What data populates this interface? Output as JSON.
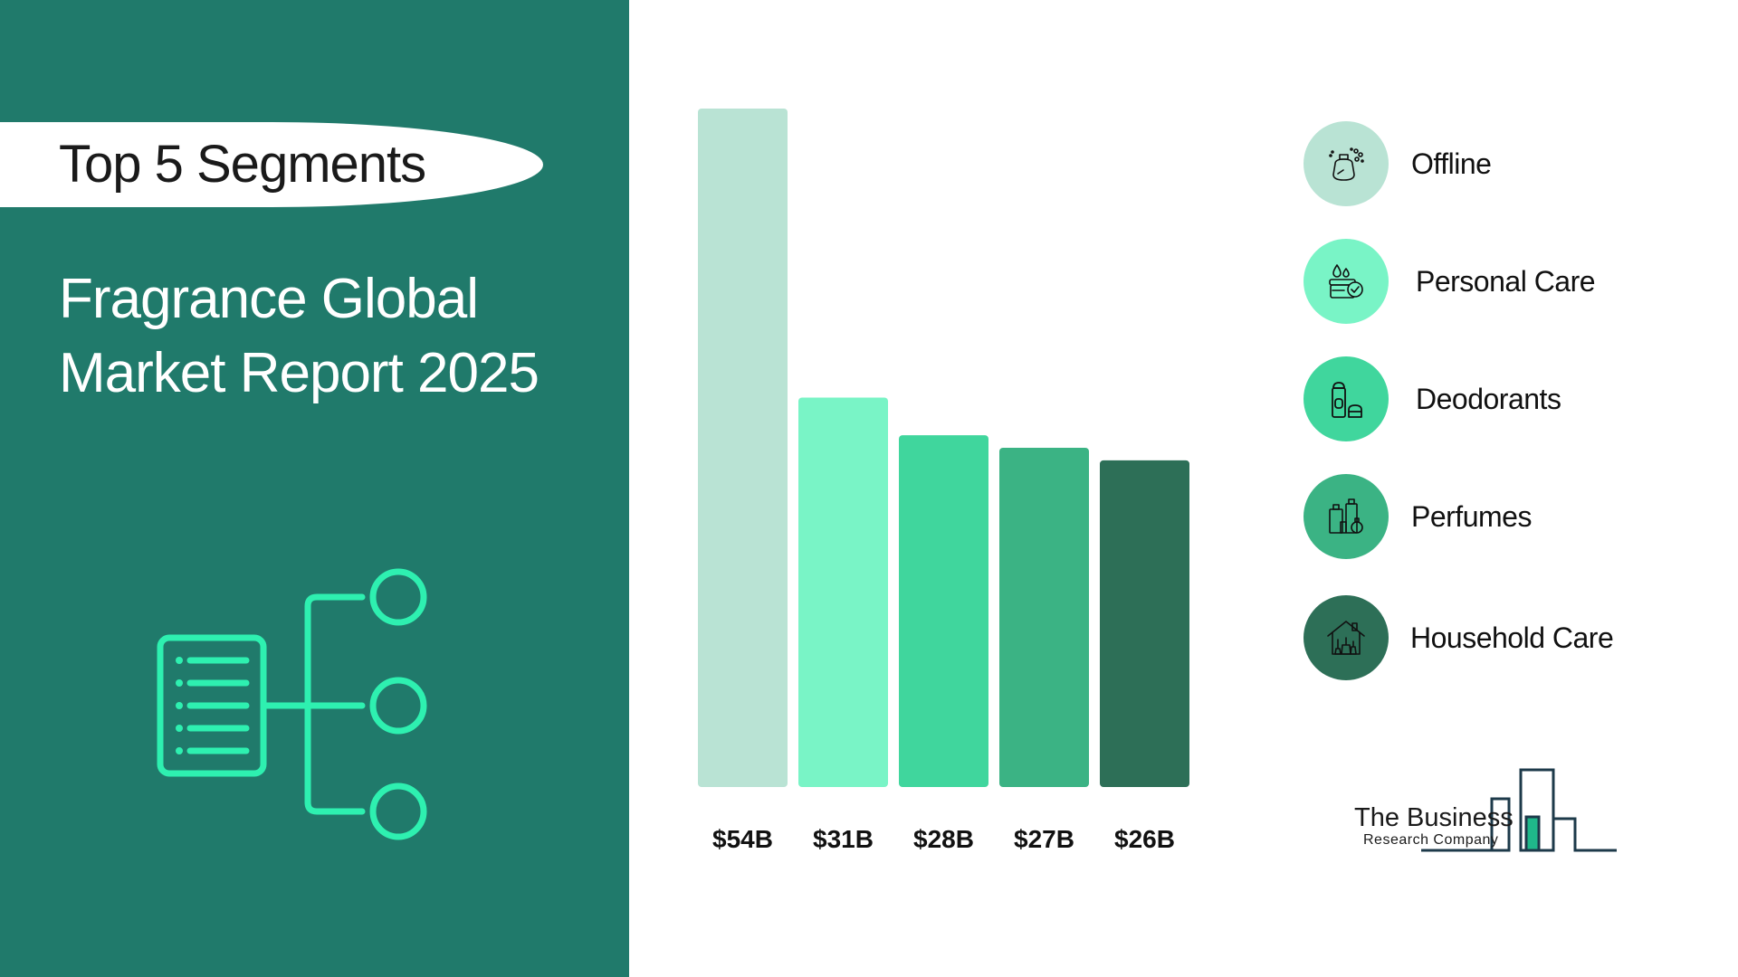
{
  "header": {
    "pill_label": "Top 5 Segments",
    "title_line1": "Fragrance Global",
    "title_line2": "Market Report 2025"
  },
  "chart_data": {
    "type": "bar",
    "categories": [
      "Offline",
      "Personal Care",
      "Deodorants",
      "Perfumes",
      "Household Care"
    ],
    "values": [
      54,
      31,
      28,
      27,
      26
    ],
    "value_labels": [
      "$54B",
      "$31B",
      "$28B",
      "$27B",
      "$26B"
    ],
    "ylim": [
      0,
      54
    ],
    "colors": [
      "#b9e3d4",
      "#79f4c6",
      "#40d69d",
      "#3bb384",
      "#2d6f57"
    ],
    "grid": false,
    "legend_placement": "right"
  },
  "legend": {
    "items": [
      {
        "label": "Offline",
        "icon": "perfume-spray-icon",
        "color": "#b9e3d4"
      },
      {
        "label": "Personal Care",
        "icon": "cream-jar-icon",
        "color": "#79f4c6"
      },
      {
        "label": "Deodorants",
        "icon": "deodorant-icon",
        "color": "#40d69d"
      },
      {
        "label": "Perfumes",
        "icon": "perfume-bottles-icon",
        "color": "#3bb384"
      },
      {
        "label": "Household Care",
        "icon": "house-cleaning-icon",
        "color": "#2d6f57"
      }
    ]
  },
  "logo": {
    "line1": "The Business",
    "line2": "Research Company",
    "accent": "#1fb88a"
  },
  "colors": {
    "panel": "#207a6b",
    "icon_accent": "#2ef0b0"
  }
}
